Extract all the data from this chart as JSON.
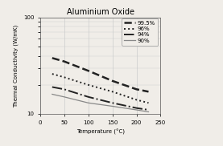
{
  "title": "Aluminium Oxide",
  "xlabel": "Temperature (°C)",
  "ylabel": "Thermal Conductivity (W/mK)",
  "xlim": [
    0,
    250
  ],
  "ylim": [
    10,
    100
  ],
  "series": [
    {
      "label": "99.5%",
      "linestyle": "--",
      "linewidth": 1.8,
      "color": "#222222",
      "x": [
        25,
        50,
        100,
        150,
        200,
        225
      ],
      "y": [
        38,
        35,
        28,
        22,
        18,
        17
      ]
    },
    {
      "label": "96%",
      "linestyle": ":",
      "linewidth": 1.4,
      "color": "#222222",
      "x": [
        25,
        50,
        100,
        150,
        200,
        225
      ],
      "y": [
        26,
        24,
        20,
        17,
        14,
        13
      ]
    },
    {
      "label": "94%",
      "linestyle": "-.",
      "linewidth": 1.4,
      "color": "#222222",
      "x": [
        25,
        50,
        100,
        150,
        200,
        225
      ],
      "y": [
        19,
        18,
        15,
        13,
        11.5,
        11
      ]
    },
    {
      "label": "90%",
      "linestyle": "-",
      "linewidth": 0.9,
      "color": "#888888",
      "x": [
        25,
        50,
        100,
        150,
        200,
        225
      ],
      "y": [
        16,
        15,
        13,
        12,
        11,
        10.5
      ]
    }
  ],
  "legend_fontsize": 5,
  "title_fontsize": 7,
  "axis_fontsize": 5,
  "tick_fontsize": 5,
  "background_color": "#f0ede8",
  "plot_bg_color": "#f0ede8",
  "grid_color": "#cccccc"
}
